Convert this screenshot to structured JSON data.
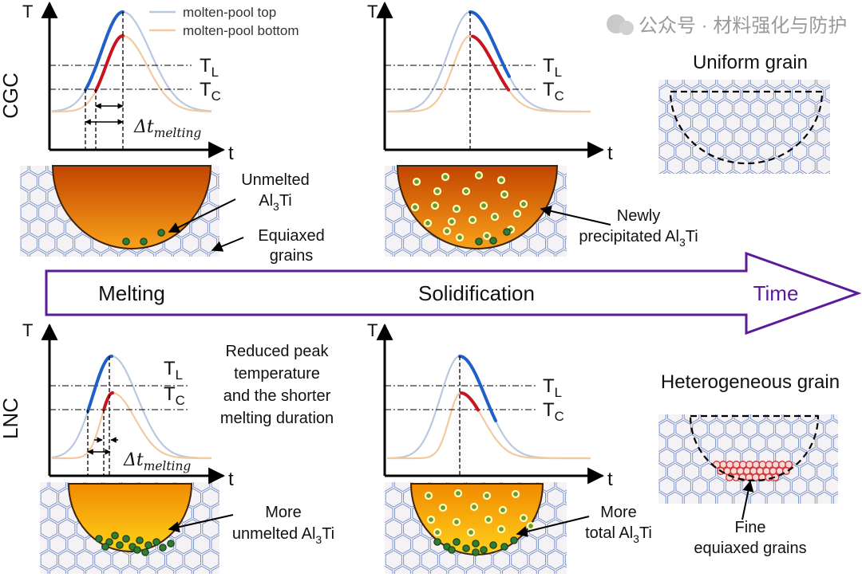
{
  "row_labels": {
    "cgc": "CGC",
    "lnc": "LNC"
  },
  "axis": {
    "y": "T",
    "x": "t"
  },
  "thresholds": {
    "liquidus": {
      "main": "T",
      "sub": "L"
    },
    "critical": {
      "main": "T",
      "sub": "C"
    }
  },
  "delta_t": {
    "main": "Δt",
    "sub": "melting"
  },
  "legend": [
    {
      "label": "molten-pool top",
      "color": "#b9c8e0"
    },
    {
      "label": "molten-pool bottom",
      "color": "#f3c9a0"
    }
  ],
  "colors": {
    "top_highlight": "#1f5fc8",
    "bottom_highlight": "#c8141e",
    "timeline": "#5b1a9a",
    "particle": "#2e7d32",
    "fine_grain": "#d03030",
    "grain_outline": "#7f93c8"
  },
  "annotations": {
    "unmelted": {
      "line1": "Unmelted",
      "al": "Al",
      "n": "3",
      "ti": "Ti"
    },
    "equiaxed": {
      "line1": "Equiaxed",
      "line2": "grains"
    },
    "newly": {
      "line1": "Newly",
      "line2": "precipitated Al",
      "n": "3",
      "ti": "Ti"
    },
    "reduced": [
      "Reduced peak",
      "temperature",
      "and the shorter",
      "melting duration"
    ],
    "more_unmelted": {
      "line1": "More",
      "line2": "unmelted Al",
      "n": "3",
      "ti": "Ti"
    },
    "more_total": {
      "line1": "More",
      "line2": "total Al",
      "n": "3",
      "ti": "Ti"
    },
    "fine": {
      "line1": "Fine",
      "line2": "equiaxed grains"
    }
  },
  "timeline": {
    "melting": "Melting",
    "solidification": "Solidification",
    "time": "Time"
  },
  "grain_titles": {
    "uniform": "Uniform grain",
    "heterogeneous": "Heterogeneous grain"
  },
  "watermark": "公众号 · 材料强化与防护"
}
